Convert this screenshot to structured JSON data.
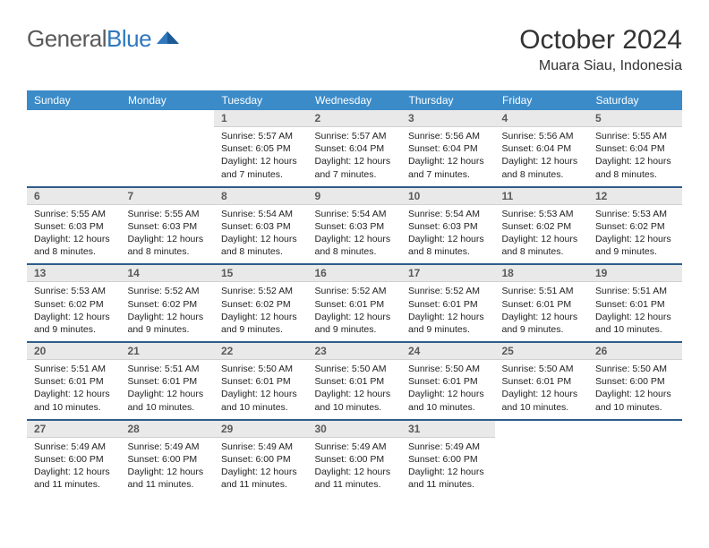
{
  "brand": {
    "general": "General",
    "blue": "Blue"
  },
  "title": "October 2024",
  "location": "Muara Siau, Indonesia",
  "colors": {
    "header_bg": "#3b8bc9",
    "header_text": "#ffffff",
    "daynum_bg": "#e9e9e9",
    "daynum_text": "#5a5a5a",
    "sep": "#2f5d8a",
    "logo_gray": "#5a5a5a",
    "logo_blue": "#2f78bd"
  },
  "day_headers": [
    "Sunday",
    "Monday",
    "Tuesday",
    "Wednesday",
    "Thursday",
    "Friday",
    "Saturday"
  ],
  "weeks": [
    [
      null,
      null,
      {
        "n": "1",
        "sr": "5:57 AM",
        "ss": "6:05 PM",
        "dl": "12 hours and 7 minutes."
      },
      {
        "n": "2",
        "sr": "5:57 AM",
        "ss": "6:04 PM",
        "dl": "12 hours and 7 minutes."
      },
      {
        "n": "3",
        "sr": "5:56 AM",
        "ss": "6:04 PM",
        "dl": "12 hours and 7 minutes."
      },
      {
        "n": "4",
        "sr": "5:56 AM",
        "ss": "6:04 PM",
        "dl": "12 hours and 8 minutes."
      },
      {
        "n": "5",
        "sr": "5:55 AM",
        "ss": "6:04 PM",
        "dl": "12 hours and 8 minutes."
      }
    ],
    [
      {
        "n": "6",
        "sr": "5:55 AM",
        "ss": "6:03 PM",
        "dl": "12 hours and 8 minutes."
      },
      {
        "n": "7",
        "sr": "5:55 AM",
        "ss": "6:03 PM",
        "dl": "12 hours and 8 minutes."
      },
      {
        "n": "8",
        "sr": "5:54 AM",
        "ss": "6:03 PM",
        "dl": "12 hours and 8 minutes."
      },
      {
        "n": "9",
        "sr": "5:54 AM",
        "ss": "6:03 PM",
        "dl": "12 hours and 8 minutes."
      },
      {
        "n": "10",
        "sr": "5:54 AM",
        "ss": "6:03 PM",
        "dl": "12 hours and 8 minutes."
      },
      {
        "n": "11",
        "sr": "5:53 AM",
        "ss": "6:02 PM",
        "dl": "12 hours and 8 minutes."
      },
      {
        "n": "12",
        "sr": "5:53 AM",
        "ss": "6:02 PM",
        "dl": "12 hours and 9 minutes."
      }
    ],
    [
      {
        "n": "13",
        "sr": "5:53 AM",
        "ss": "6:02 PM",
        "dl": "12 hours and 9 minutes."
      },
      {
        "n": "14",
        "sr": "5:52 AM",
        "ss": "6:02 PM",
        "dl": "12 hours and 9 minutes."
      },
      {
        "n": "15",
        "sr": "5:52 AM",
        "ss": "6:02 PM",
        "dl": "12 hours and 9 minutes."
      },
      {
        "n": "16",
        "sr": "5:52 AM",
        "ss": "6:01 PM",
        "dl": "12 hours and 9 minutes."
      },
      {
        "n": "17",
        "sr": "5:52 AM",
        "ss": "6:01 PM",
        "dl": "12 hours and 9 minutes."
      },
      {
        "n": "18",
        "sr": "5:51 AM",
        "ss": "6:01 PM",
        "dl": "12 hours and 9 minutes."
      },
      {
        "n": "19",
        "sr": "5:51 AM",
        "ss": "6:01 PM",
        "dl": "12 hours and 10 minutes."
      }
    ],
    [
      {
        "n": "20",
        "sr": "5:51 AM",
        "ss": "6:01 PM",
        "dl": "12 hours and 10 minutes."
      },
      {
        "n": "21",
        "sr": "5:51 AM",
        "ss": "6:01 PM",
        "dl": "12 hours and 10 minutes."
      },
      {
        "n": "22",
        "sr": "5:50 AM",
        "ss": "6:01 PM",
        "dl": "12 hours and 10 minutes."
      },
      {
        "n": "23",
        "sr": "5:50 AM",
        "ss": "6:01 PM",
        "dl": "12 hours and 10 minutes."
      },
      {
        "n": "24",
        "sr": "5:50 AM",
        "ss": "6:01 PM",
        "dl": "12 hours and 10 minutes."
      },
      {
        "n": "25",
        "sr": "5:50 AM",
        "ss": "6:01 PM",
        "dl": "12 hours and 10 minutes."
      },
      {
        "n": "26",
        "sr": "5:50 AM",
        "ss": "6:00 PM",
        "dl": "12 hours and 10 minutes."
      }
    ],
    [
      {
        "n": "27",
        "sr": "5:49 AM",
        "ss": "6:00 PM",
        "dl": "12 hours and 11 minutes."
      },
      {
        "n": "28",
        "sr": "5:49 AM",
        "ss": "6:00 PM",
        "dl": "12 hours and 11 minutes."
      },
      {
        "n": "29",
        "sr": "5:49 AM",
        "ss": "6:00 PM",
        "dl": "12 hours and 11 minutes."
      },
      {
        "n": "30",
        "sr": "5:49 AM",
        "ss": "6:00 PM",
        "dl": "12 hours and 11 minutes."
      },
      {
        "n": "31",
        "sr": "5:49 AM",
        "ss": "6:00 PM",
        "dl": "12 hours and 11 minutes."
      },
      null,
      null
    ]
  ],
  "labels": {
    "sunrise": "Sunrise: ",
    "sunset": "Sunset: ",
    "daylight": "Daylight: "
  }
}
